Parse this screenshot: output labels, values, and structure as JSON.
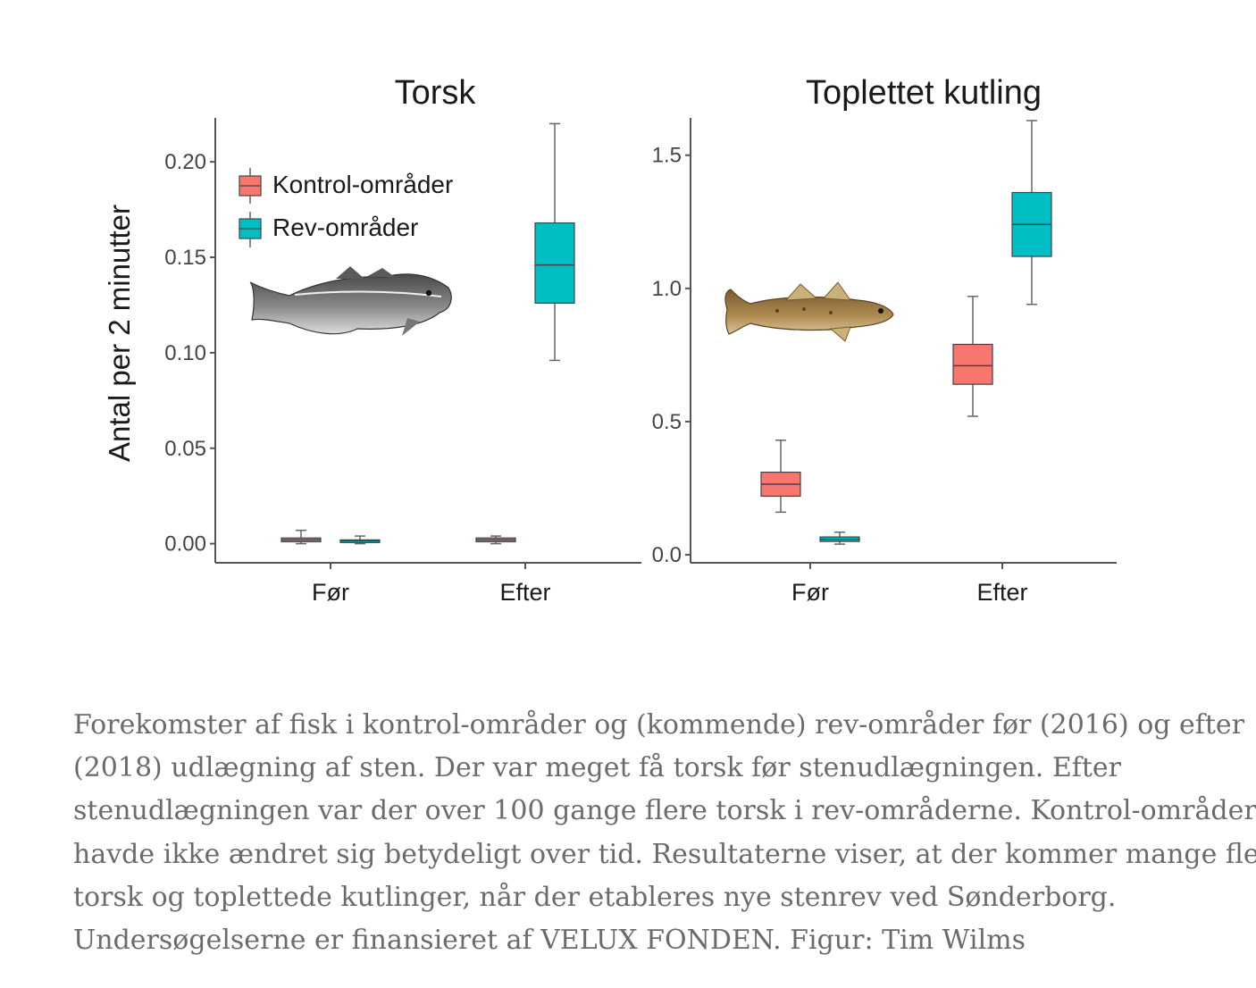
{
  "chart_data": [
    {
      "type": "box",
      "title": "Torsk",
      "ylabel": "Antal per 2 minutter",
      "categories": [
        "Før",
        "Efter"
      ],
      "ylim": [
        -0.01,
        0.223
      ],
      "yticks": [
        "0.00",
        "0.05",
        "0.10",
        "0.15",
        "0.20"
      ],
      "grid": false,
      "legend": {
        "position": "top-left",
        "entries": [
          "Kontrol-områder",
          "Rev-områder"
        ]
      },
      "series": [
        {
          "name": "Kontrol-områder",
          "color": "#F8766D",
          "boxes": [
            {
              "category": "Før",
              "min": 0.0,
              "q1": 0.001,
              "median": 0.002,
              "q3": 0.003,
              "max": 0.007
            },
            {
              "category": "Efter",
              "min": 0.0,
              "q1": 0.001,
              "median": 0.002,
              "q3": 0.003,
              "max": 0.004
            }
          ]
        },
        {
          "name": "Rev-områder",
          "color": "#00BFC4",
          "boxes": [
            {
              "category": "Før",
              "min": 0.0,
              "q1": 0.001,
              "median": 0.0015,
              "q3": 0.002,
              "max": 0.004
            },
            {
              "category": "Efter",
              "min": 0.096,
              "q1": 0.126,
              "median": 0.146,
              "q3": 0.168,
              "max": 0.22
            }
          ]
        }
      ]
    },
    {
      "type": "box",
      "title": "Toplettet kutling",
      "categories": [
        "Før",
        "Efter"
      ],
      "ylim": [
        -0.03,
        1.64
      ],
      "yticks": [
        "0.0",
        "0.5",
        "1.0",
        "1.5"
      ],
      "grid": false,
      "series": [
        {
          "name": "Kontrol-områder",
          "color": "#F8766D",
          "boxes": [
            {
              "category": "Før",
              "min": 0.16,
              "q1": 0.22,
              "median": 0.265,
              "q3": 0.31,
              "max": 0.43
            },
            {
              "category": "Efter",
              "min": 0.52,
              "q1": 0.64,
              "median": 0.71,
              "q3": 0.79,
              "max": 0.97
            }
          ]
        },
        {
          "name": "Rev-områder",
          "color": "#00BFC4",
          "boxes": [
            {
              "category": "Før",
              "min": 0.04,
              "q1": 0.05,
              "median": 0.058,
              "q3": 0.067,
              "max": 0.085
            },
            {
              "category": "Efter",
              "min": 0.94,
              "q1": 1.12,
              "median": 1.24,
              "q3": 1.36,
              "max": 1.63
            }
          ]
        }
      ]
    }
  ],
  "illustrations": {
    "cod": {
      "icon": "cod-fish-icon",
      "color": "#6f6f6f"
    },
    "goby": {
      "icon": "goby-fish-icon",
      "color": "#9a7a4a"
    }
  },
  "caption": {
    "lines": [
      "Forekomster af fisk i kontrol-områder og (kommende) rev-områder før (2016) og efter",
      "(2018) udlægning af sten. Der var meget få torsk før stenudlægningen. Efter",
      "stenudlægningen var der over 100 gange flere torsk i rev-områderne. Kontrol-områderne",
      "havde ikke ændret sig betydeligt over tid. Resultaterne viser, at der kommer mange flere",
      "torsk og toplettede kutlinger, når der etableres nye stenrev ved Sønderborg.",
      "Undersøgelserne er finansieret af VELUX FONDEN. Figur: Tim Wilms"
    ]
  }
}
